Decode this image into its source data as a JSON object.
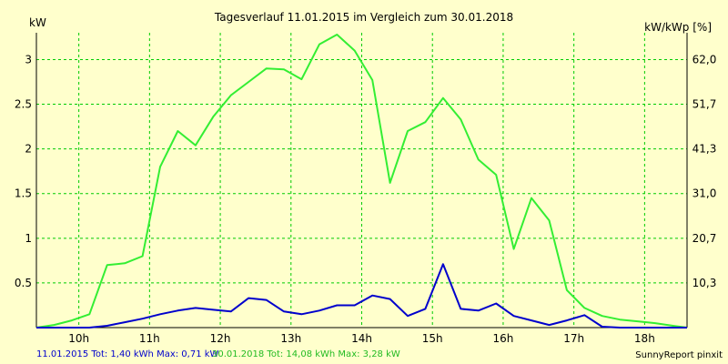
{
  "chart_data": {
    "type": "line",
    "title": "Tagesverlauf 11.01.2015 im Vergleich zum 30.01.2018",
    "ylabel_left": "kW",
    "ylabel_right": "kW/kWp [%]",
    "xlim": [
      9.4,
      18.6
    ],
    "ylim": [
      0,
      3.3
    ],
    "x_ticks": [
      10,
      11,
      12,
      13,
      14,
      15,
      16,
      17,
      18
    ],
    "x_tick_labels": [
      "10h",
      "11h",
      "12h",
      "13h",
      "14h",
      "15h",
      "16h",
      "17h",
      "18h"
    ],
    "y_ticks": [
      0.5,
      1,
      1.5,
      2,
      2.5,
      3
    ],
    "y_tick_labels": [
      "0.5",
      "1",
      "1.5",
      "2",
      "2.5",
      "3"
    ],
    "y2_ticks": [
      0.5,
      1,
      1.5,
      2,
      2.5,
      3
    ],
    "y2_tick_labels": [
      "10,3",
      "20,7",
      "31,0",
      "41,3",
      "51,7",
      "62,0"
    ],
    "grid": true,
    "colors": {
      "background": "#ffffcc",
      "grid": "#00cc00",
      "series_2015": "#0000cc",
      "series_2018": "#33ee33"
    },
    "series": [
      {
        "name": "11.01.2015",
        "color": "#0000cc",
        "x": [
          9.4,
          9.65,
          9.9,
          10.15,
          10.4,
          10.65,
          10.9,
          11.15,
          11.4,
          11.65,
          11.9,
          12.15,
          12.4,
          12.65,
          12.9,
          13.15,
          13.4,
          13.65,
          13.9,
          14.15,
          14.4,
          14.65,
          14.9,
          15.15,
          15.4,
          15.65,
          15.9,
          16.15,
          16.4,
          16.65,
          16.9,
          17.15,
          17.4,
          17.65,
          17.9,
          18.15,
          18.4,
          18.6
        ],
        "values": [
          0,
          0,
          0,
          0,
          0.02,
          0.06,
          0.1,
          0.15,
          0.19,
          0.22,
          0.2,
          0.18,
          0.33,
          0.31,
          0.18,
          0.15,
          0.19,
          0.25,
          0.25,
          0.36,
          0.32,
          0.13,
          0.21,
          0.71,
          0.21,
          0.19,
          0.27,
          0.13,
          0.08,
          0.03,
          0.08,
          0.14,
          0.01,
          0,
          0,
          0,
          0,
          0
        ]
      },
      {
        "name": "30.01.2018",
        "color": "#33ee33",
        "x": [
          9.4,
          9.65,
          9.9,
          10.15,
          10.4,
          10.65,
          10.9,
          11.15,
          11.4,
          11.65,
          11.9,
          12.15,
          12.4,
          12.65,
          12.9,
          13.15,
          13.4,
          13.65,
          13.9,
          14.15,
          14.4,
          14.65,
          14.9,
          15.15,
          15.4,
          15.65,
          15.9,
          16.15,
          16.4,
          16.65,
          16.9,
          17.15,
          17.4,
          17.65,
          17.9,
          18.15,
          18.4,
          18.6
        ],
        "values": [
          0,
          0.03,
          0.08,
          0.15,
          0.7,
          0.72,
          0.8,
          1.8,
          2.2,
          2.04,
          2.36,
          2.6,
          2.75,
          2.9,
          2.89,
          2.78,
          3.17,
          3.28,
          3.1,
          2.77,
          1.62,
          2.2,
          2.3,
          2.57,
          2.33,
          1.88,
          1.71,
          0.88,
          1.45,
          1.2,
          0.42,
          0.22,
          0.13,
          0.09,
          0.07,
          0.05,
          0.02,
          0
        ]
      }
    ]
  },
  "footer": {
    "summary_2015": "11.01.2015 Tot: 1,40 kWh Max: 0,71 kW",
    "summary_2018": "30.01.2018 Tot: 14,08 kWh Max: 3,28 kW",
    "credit": "SunnyReport pinxit"
  }
}
